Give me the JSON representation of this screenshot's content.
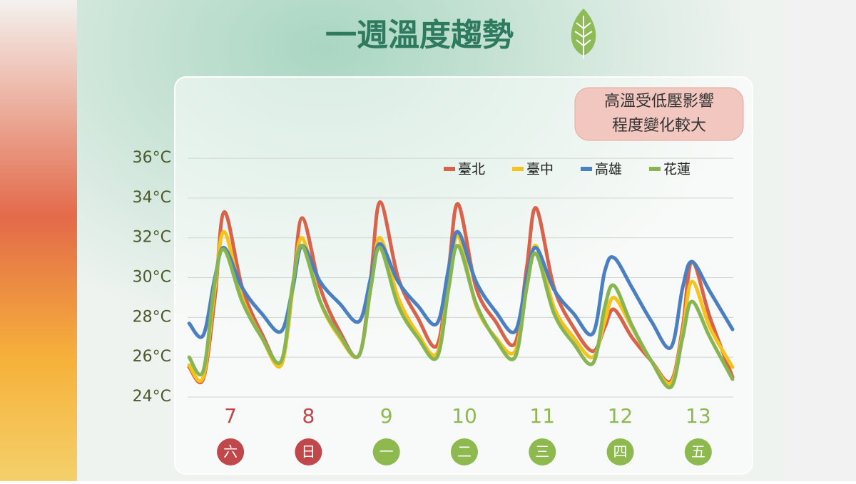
{
  "chart_data": {
    "type": "line",
    "title": "一週溫度趨勢",
    "annotation": [
      "高溫受低壓影響",
      "程度變化較大"
    ],
    "x": [
      6.47,
      6.65,
      6.8,
      6.92,
      7.15,
      7.4,
      7.65,
      7.8,
      7.92,
      8.15,
      8.4,
      8.65,
      8.8,
      8.92,
      9.15,
      9.4,
      9.65,
      9.8,
      9.92,
      10.15,
      10.4,
      10.65,
      10.8,
      10.92,
      11.15,
      11.4,
      11.65,
      11.8,
      11.92,
      12.15,
      12.4,
      12.65,
      12.8,
      12.92,
      13.15,
      13.44
    ],
    "series": [
      {
        "name": "臺北",
        "color": "#d9634a",
        "values": [
          25.5,
          24.9,
          29,
          33.3,
          29.5,
          27.2,
          25.7,
          29.5,
          33,
          29.5,
          27.3,
          26.1,
          30,
          33.8,
          30,
          28,
          26.6,
          30.5,
          33.7,
          29.5,
          27.8,
          26.7,
          30.5,
          33.5,
          29.5,
          27.5,
          26.3,
          27.5,
          28.4,
          27,
          25.8,
          24.8,
          27.5,
          30.8,
          28,
          25
        ]
      },
      {
        "name": "臺中",
        "color": "#f7c21a",
        "values": [
          25.6,
          25,
          29.5,
          32.3,
          29,
          27,
          25.6,
          29.5,
          32,
          28.8,
          27,
          26.1,
          29.5,
          32,
          29,
          27.2,
          26.2,
          29.8,
          32.1,
          28.6,
          27,
          26.3,
          29.5,
          31.6,
          28.5,
          27,
          26,
          27.8,
          29,
          27.5,
          25.8,
          24.7,
          27.2,
          29.8,
          27.5,
          25.5
        ]
      },
      {
        "name": "高雄",
        "color": "#4a7fc1",
        "values": [
          27.7,
          27.1,
          30,
          31.5,
          29.5,
          28.2,
          27.3,
          29.5,
          31.6,
          29.8,
          28.7,
          27.8,
          30,
          31.7,
          29.8,
          28.6,
          27.7,
          30.5,
          32.3,
          29.8,
          28.3,
          27.3,
          30,
          31.5,
          29.4,
          28.2,
          27.2,
          30.3,
          31,
          29.5,
          27.8,
          26.5,
          29.5,
          30.8,
          29.3,
          27.4
        ]
      },
      {
        "name": "花蓮",
        "color": "#86b552",
        "values": [
          26,
          25.3,
          29.8,
          31.4,
          28.8,
          27,
          25.8,
          29.7,
          31.6,
          28.8,
          27.1,
          26.1,
          29.5,
          31.5,
          28.6,
          27,
          26,
          29.5,
          31.6,
          28.7,
          26.9,
          26,
          29.5,
          31.2,
          28.2,
          26.7,
          25.7,
          28.5,
          29.6,
          27.6,
          25.8,
          24.5,
          27,
          28.8,
          27,
          24.9
        ]
      }
    ],
    "xlim": [
      6.45,
      13.45
    ],
    "xticks": [
      7,
      8,
      9,
      10,
      11,
      12,
      13
    ],
    "weekdays": [
      "六",
      "日",
      "一",
      "二",
      "三",
      "四",
      "五"
    ],
    "weekday_colors": [
      "#c0474a",
      "#c0474a",
      "#8db94f",
      "#8db94f",
      "#8db94f",
      "#8db94f",
      "#8db94f"
    ],
    "ylim": [
      24,
      36
    ],
    "yticks": [
      {
        "value": 24,
        "label": "24°C"
      },
      {
        "value": 26,
        "label": "26°C"
      },
      {
        "value": 28,
        "label": "28°C"
      },
      {
        "value": 30,
        "label": "30°C"
      },
      {
        "value": 32,
        "label": "32°C"
      },
      {
        "value": 34,
        "label": "34°C"
      },
      {
        "value": 36,
        "label": "36°C"
      }
    ],
    "grid": true,
    "legend": "top-right"
  }
}
